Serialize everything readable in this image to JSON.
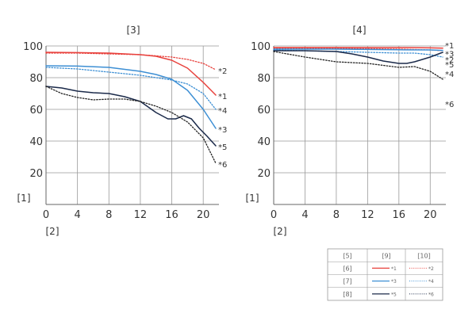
{
  "colors": {
    "red": "#e8413c",
    "blue": "#3d8fd4",
    "navy": "#1b2a4a",
    "black": "#222222",
    "grid": "#999999"
  },
  "chart_data": [
    {
      "type": "line",
      "title": "[3]",
      "xlabel": "[2]",
      "ylabel": "[1]",
      "xlim": [
        0,
        22
      ],
      "ylim": [
        0,
        100
      ],
      "xticks": [
        0,
        4,
        8,
        12,
        16,
        20
      ],
      "yticks": [
        20,
        40,
        60,
        80,
        100
      ],
      "grid": true,
      "series": [
        {
          "name": "*1",
          "color": "red",
          "style": "solid",
          "x": [
            0,
            4,
            8,
            12,
            14,
            16,
            18,
            20,
            21.6
          ],
          "y": [
            96,
            95.8,
            95.5,
            94.5,
            93.5,
            91,
            86,
            77,
            69
          ]
        },
        {
          "name": "*2",
          "color": "red",
          "style": "dotted",
          "x": [
            0,
            4,
            8,
            12,
            16,
            18,
            20,
            21.6
          ],
          "y": [
            95.5,
            95.5,
            95,
            94.5,
            93,
            91.5,
            89,
            85
          ]
        },
        {
          "name": "*3",
          "color": "blue",
          "style": "solid",
          "x": [
            0,
            4,
            8,
            12,
            14,
            16,
            18,
            20,
            21.6
          ],
          "y": [
            87.5,
            87.3,
            86.5,
            84,
            82,
            79,
            72,
            60,
            48
          ]
        },
        {
          "name": "*4",
          "color": "blue",
          "style": "dotted",
          "x": [
            0,
            4,
            8,
            12,
            14,
            16,
            18,
            20,
            21.6
          ],
          "y": [
            86.5,
            85.5,
            83.5,
            81.5,
            80,
            78.5,
            76,
            70,
            60
          ]
        },
        {
          "name": "*5",
          "color": "navy",
          "style": "solid",
          "x": [
            0,
            2,
            4,
            6,
            8,
            10,
            12,
            14,
            15.5,
            16.5,
            17.5,
            18.5,
            19.5,
            20.5,
            21.6
          ],
          "y": [
            74.5,
            73.5,
            71.5,
            70.5,
            70,
            68,
            65,
            58,
            54,
            54,
            56,
            54,
            48,
            43,
            37
          ]
        },
        {
          "name": "*6",
          "color": "black",
          "style": "dotted",
          "x": [
            0,
            2,
            4,
            6,
            8,
            10,
            12,
            14,
            16,
            18,
            20,
            21.6
          ],
          "y": [
            74.5,
            70,
            67.5,
            66,
            66.5,
            66.5,
            65,
            62,
            58,
            52,
            42,
            26
          ]
        }
      ]
    },
    {
      "type": "line",
      "title": "[4]",
      "xlabel": "[2]",
      "ylabel": "[1]",
      "xlim": [
        0,
        22
      ],
      "ylim": [
        0,
        100
      ],
      "xticks": [
        0,
        4,
        8,
        12,
        16,
        20
      ],
      "yticks": [
        20,
        40,
        60,
        80,
        100
      ],
      "grid": true,
      "series": [
        {
          "name": "*1",
          "color": "red",
          "style": "solid",
          "x": [
            0,
            4,
            8,
            12,
            16,
            20,
            21.6
          ],
          "y": [
            99,
            99,
            99,
            99,
            99,
            98.8,
            98.6
          ]
        },
        {
          "name": "*2",
          "color": "red",
          "style": "dotted",
          "x": [
            0,
            4,
            8,
            12,
            16,
            20,
            21.6
          ],
          "y": [
            98.6,
            98.6,
            98.5,
            98.3,
            98,
            97.5,
            97
          ]
        },
        {
          "name": "*3",
          "color": "blue",
          "style": "solid",
          "x": [
            0,
            4,
            8,
            12,
            16,
            20,
            21.6
          ],
          "y": [
            98,
            98,
            98,
            97.8,
            97.6,
            97.5,
            97.2
          ]
        },
        {
          "name": "*4",
          "color": "blue",
          "style": "dotted",
          "x": [
            0,
            4,
            8,
            12,
            16,
            18,
            20,
            21.6
          ],
          "y": [
            97.5,
            97,
            96.5,
            96,
            95.5,
            95.5,
            94.5,
            93
          ]
        },
        {
          "name": "*5",
          "color": "navy",
          "style": "solid",
          "x": [
            0,
            4,
            8,
            10,
            12,
            14,
            16,
            17,
            18,
            20,
            21.6
          ],
          "y": [
            97,
            97,
            96.5,
            95,
            93,
            90.5,
            89,
            89,
            90,
            93,
            96
          ]
        },
        {
          "name": "*6",
          "color": "black",
          "style": "dotted",
          "x": [
            0,
            4,
            8,
            12,
            16,
            18,
            20,
            21.6
          ],
          "y": [
            96.5,
            93,
            90,
            89,
            86.5,
            87,
            84,
            79
          ]
        }
      ]
    }
  ],
  "legend_table": {
    "header": [
      "[5]",
      "[9]",
      "[10]"
    ],
    "rows": [
      {
        "label": "[6]",
        "solid": "*1",
        "dotted": "*2",
        "color": "red"
      },
      {
        "label": "[7]",
        "solid": "*3",
        "dotted": "*4",
        "color": "blue"
      },
      {
        "label": "[8]",
        "solid": "*5",
        "dotted": "*6",
        "color": "navy"
      }
    ]
  }
}
